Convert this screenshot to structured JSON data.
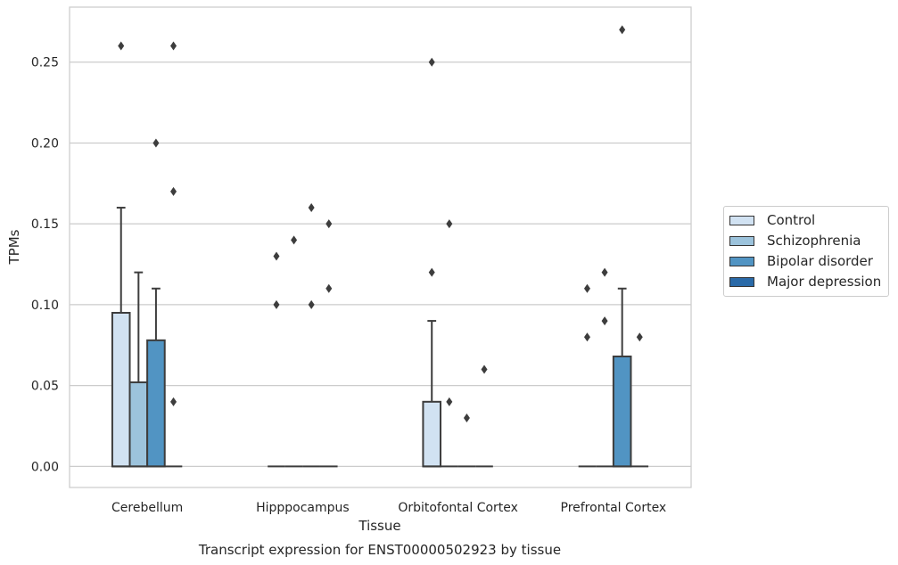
{
  "chart_data": {
    "type": "box",
    "ylabel": "TPMs",
    "xlabel": "Tissue",
    "caption": "Transcript expression for ENST00000502923 by tissue",
    "ylim": [
      -0.013,
      0.284
    ],
    "yticks": [
      0.0,
      0.05,
      0.1,
      0.15,
      0.2,
      0.25
    ],
    "ytick_labels": [
      "0.00",
      "0.05",
      "0.10",
      "0.15",
      "0.20",
      "0.25"
    ],
    "grid": true,
    "legend_position": "outside-right",
    "categories": [
      "Cerebellum",
      "Hipppocampus",
      "Orbitofontal Cortex",
      "Prefrontal Cortex"
    ],
    "series": [
      {
        "name": "Control",
        "color": "#d1e2f2",
        "boxes": [
          {
            "q1": 0,
            "q3": 0.095,
            "median": 0,
            "whisker_low": 0,
            "whisker_high": 0.16,
            "outliers": [
              0.26
            ]
          },
          {
            "q1": 0,
            "q3": 0,
            "median": 0,
            "whisker_low": 0,
            "whisker_high": 0,
            "outliers": [
              0.1,
              0.13
            ]
          },
          {
            "q1": 0,
            "q3": 0.04,
            "median": 0,
            "whisker_low": 0,
            "whisker_high": 0.09,
            "outliers": [
              0.12,
              0.25
            ]
          },
          {
            "q1": 0,
            "q3": 0,
            "median": 0,
            "whisker_low": 0,
            "whisker_high": 0,
            "outliers": [
              0.08,
              0.11
            ]
          }
        ]
      },
      {
        "name": "Schizophrenia",
        "color": "#9cc3dc",
        "boxes": [
          {
            "q1": 0,
            "q3": 0.052,
            "median": 0,
            "whisker_low": 0,
            "whisker_high": 0.12,
            "outliers": []
          },
          {
            "q1": 0,
            "q3": 0,
            "median": 0,
            "whisker_low": 0,
            "whisker_high": 0,
            "outliers": [
              0.14
            ]
          },
          {
            "q1": 0,
            "q3": 0,
            "median": 0,
            "whisker_low": 0,
            "whisker_high": 0,
            "outliers": [
              0.04,
              0.15
            ]
          },
          {
            "q1": 0,
            "q3": 0,
            "median": 0,
            "whisker_low": 0,
            "whisker_high": 0,
            "outliers": [
              0.09,
              0.12
            ]
          }
        ]
      },
      {
        "name": "Bipolar disorder",
        "color": "#5194c3",
        "boxes": [
          {
            "q1": 0,
            "q3": 0.078,
            "median": 0,
            "whisker_low": 0,
            "whisker_high": 0.11,
            "outliers": [
              0.2
            ]
          },
          {
            "q1": 0,
            "q3": 0,
            "median": 0,
            "whisker_low": 0,
            "whisker_high": 0,
            "outliers": [
              0.1,
              0.16
            ]
          },
          {
            "q1": 0,
            "q3": 0,
            "median": 0,
            "whisker_low": 0,
            "whisker_high": 0,
            "outliers": [
              0.03
            ]
          },
          {
            "q1": 0,
            "q3": 0.068,
            "median": 0,
            "whisker_low": 0,
            "whisker_high": 0.11,
            "outliers": [
              0.27
            ]
          }
        ]
      },
      {
        "name": "Major depression",
        "color": "#2a6aa8",
        "boxes": [
          {
            "q1": 0,
            "q3": 0,
            "median": 0,
            "whisker_low": 0,
            "whisker_high": 0,
            "outliers": [
              0.04,
              0.17,
              0.26
            ]
          },
          {
            "q1": 0,
            "q3": 0,
            "median": 0,
            "whisker_low": 0,
            "whisker_high": 0,
            "outliers": [
              0.11,
              0.15
            ]
          },
          {
            "q1": 0,
            "q3": 0,
            "median": 0,
            "whisker_low": 0,
            "whisker_high": 0,
            "outliers": [
              0.06
            ]
          },
          {
            "q1": 0,
            "q3": 0,
            "median": 0,
            "whisker_low": 0,
            "whisker_high": 0,
            "outliers": [
              0.08
            ]
          }
        ]
      }
    ]
  }
}
